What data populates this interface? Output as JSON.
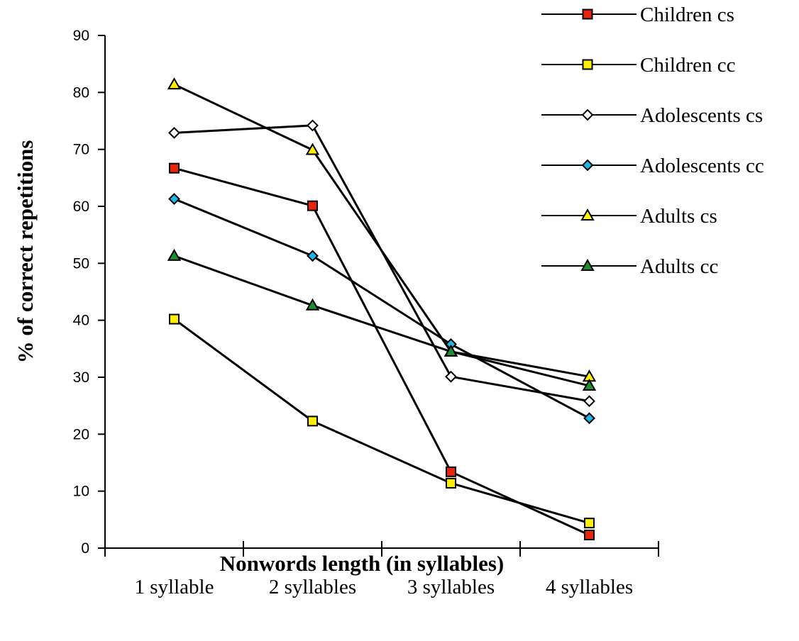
{
  "chart_data": {
    "type": "line",
    "title": "",
    "xlabel": "Nonwords length (in syllables)",
    "ylabel": "% of correct repetitions",
    "categories": [
      "1 syllable",
      "2 syllables",
      "3 syllables",
      "4 syllables"
    ],
    "ylim": [
      0,
      90
    ],
    "yticks": [
      0,
      10,
      20,
      30,
      40,
      50,
      60,
      70,
      80,
      90
    ],
    "grid": false,
    "legend_position": "top-right",
    "series": [
      {
        "name": "Children cs",
        "marker": "square",
        "color": "#e8250c",
        "values": [
          66.7,
          60.1,
          13.4,
          2.3
        ]
      },
      {
        "name": "Children cc",
        "marker": "square",
        "color": "#ffef00",
        "values": [
          40.2,
          22.3,
          11.4,
          4.4
        ]
      },
      {
        "name": "Adolescents cs",
        "marker": "diamond",
        "color": "#ffffff",
        "values": [
          72.9,
          74.2,
          30.1,
          25.8
        ]
      },
      {
        "name": "Adolescents cc",
        "marker": "diamond",
        "color": "#1fb6e6",
        "values": [
          61.3,
          51.3,
          35.8,
          22.8
        ]
      },
      {
        "name": "Adults cs",
        "marker": "triangle",
        "color": "#ffef00",
        "values": [
          81.4,
          69.9,
          34.5,
          30.1
        ]
      },
      {
        "name": "Adults cc",
        "marker": "triangle",
        "color": "#1e8e2e",
        "values": [
          51.3,
          42.6,
          34.5,
          28.5
        ]
      }
    ]
  }
}
